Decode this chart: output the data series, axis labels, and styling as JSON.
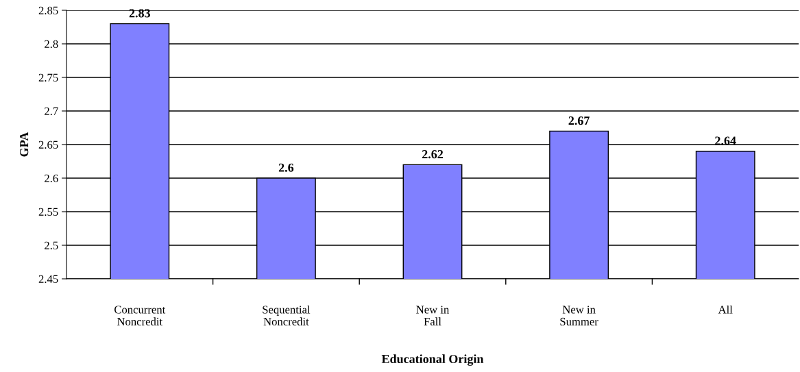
{
  "chart_data": {
    "type": "bar",
    "xlabel": "Educational Origin",
    "ylabel": "GPA",
    "categories": [
      "Concurrent\nNoncredit",
      "Sequential\nNoncredit",
      "New in\nFall",
      "New in\nSummer",
      "All"
    ],
    "values": [
      2.83,
      2.6,
      2.62,
      2.67,
      2.64
    ],
    "color": "#8080ff",
    "ylim": [
      2.45,
      2.85
    ],
    "yticks": [
      2.45,
      2.5,
      2.55,
      2.6,
      2.65,
      2.7,
      2.75,
      2.8,
      2.85
    ],
    "grid": "y",
    "data_labels": true,
    "legend": false
  }
}
